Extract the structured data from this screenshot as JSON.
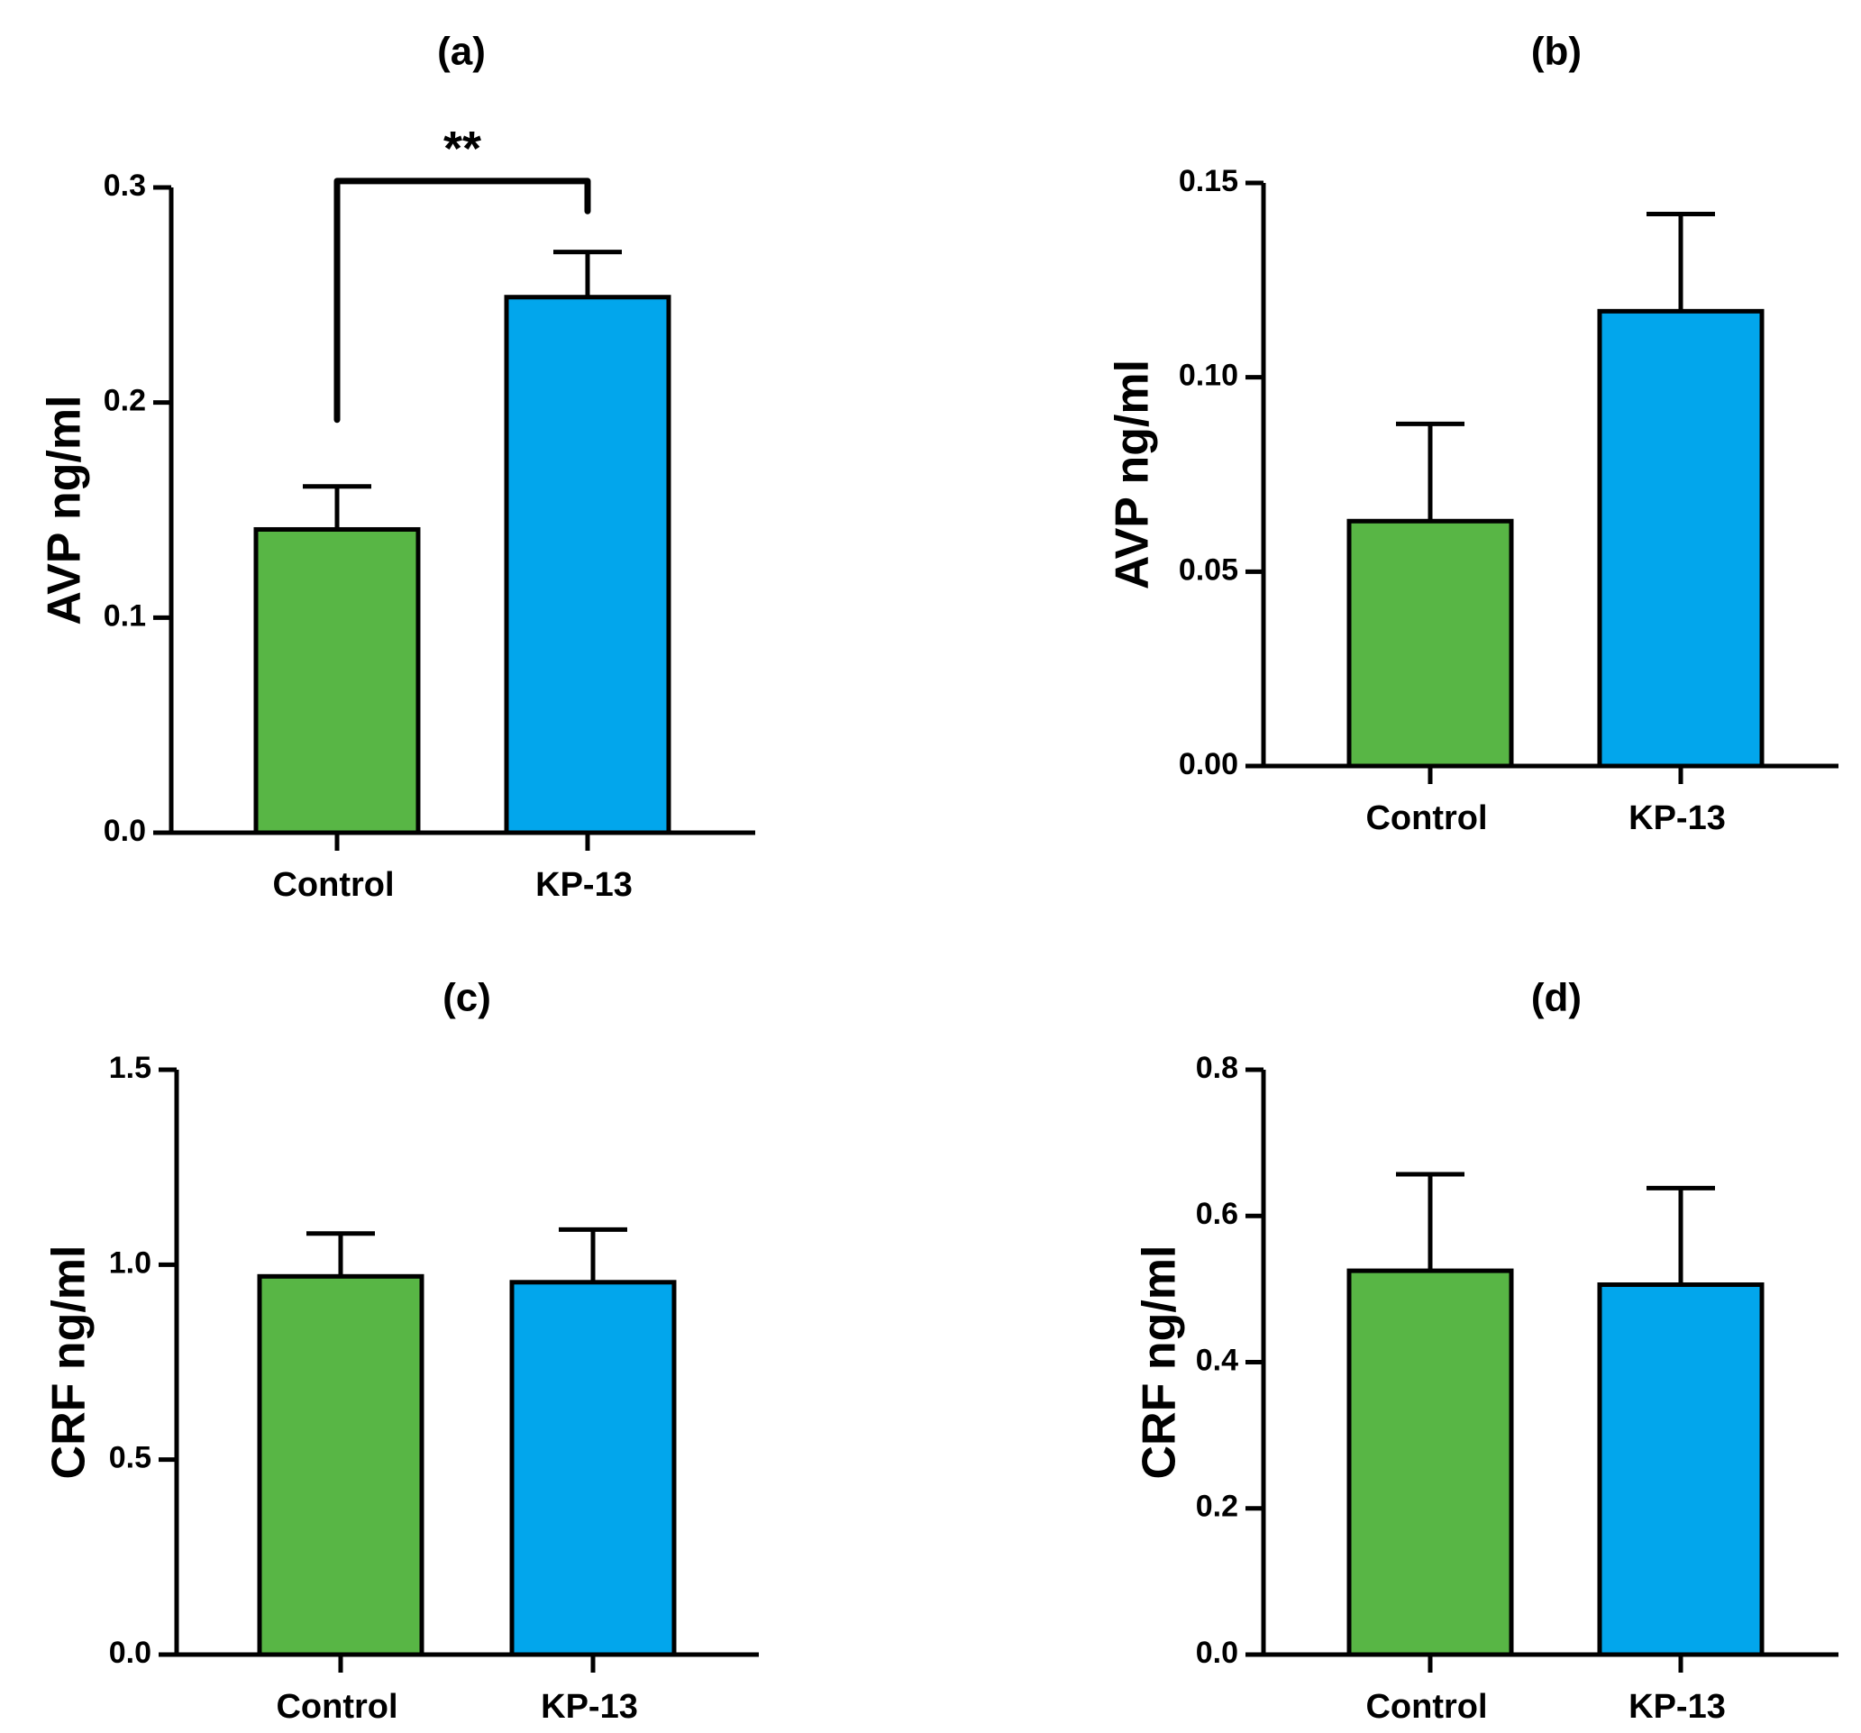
{
  "colors": {
    "control": "#58b645",
    "kp13": "#02a6ec",
    "stroke": "#000000"
  },
  "chart_data": [
    {
      "type": "bar",
      "title": "(a)",
      "ylabel": "AVP ng/ml",
      "categories": [
        "Control",
        "KP-13"
      ],
      "values": [
        0.141,
        0.249
      ],
      "error": [
        0.02,
        0.021
      ],
      "ylim": [
        0,
        0.3
      ],
      "yticks": [
        0.0,
        0.1,
        0.2,
        0.3
      ],
      "ytick_labels": [
        "0.0",
        "0.1",
        "0.2",
        "0.3"
      ],
      "significance": {
        "label": "**",
        "between": [
          0,
          1
        ]
      }
    },
    {
      "type": "bar",
      "title": "(b)",
      "ylabel": "AVP ng/ml",
      "categories": [
        "Control",
        "KP-13"
      ],
      "values": [
        0.063,
        0.117
      ],
      "error": [
        0.025,
        0.025
      ],
      "ylim": [
        0,
        0.15
      ],
      "yticks": [
        0.0,
        0.05,
        0.1,
        0.15
      ],
      "ytick_labels": [
        "0.00",
        "0.05",
        "0.10",
        "0.15"
      ]
    },
    {
      "type": "bar",
      "title": "(c)",
      "ylabel": "CRF ng/ml",
      "categories": [
        "Control",
        "KP-13"
      ],
      "values": [
        0.97,
        0.955
      ],
      "error": [
        0.11,
        0.135
      ],
      "ylim": [
        0,
        1.5
      ],
      "yticks": [
        0.0,
        0.5,
        1.0,
        1.5
      ],
      "ytick_labels": [
        "0.0",
        "0.5",
        "1.0",
        "1.5"
      ]
    },
    {
      "type": "bar",
      "title": "(d)",
      "ylabel": "CRF ng/ml",
      "categories": [
        "Control",
        "KP-13"
      ],
      "values": [
        0.525,
        0.506
      ],
      "error": [
        0.132,
        0.132
      ],
      "ylim": [
        0,
        0.8
      ],
      "yticks": [
        0.0,
        0.2,
        0.4,
        0.6,
        0.8
      ],
      "ytick_labels": [
        "0.0",
        "0.2",
        "0.4",
        "0.6",
        "0.8"
      ]
    }
  ]
}
